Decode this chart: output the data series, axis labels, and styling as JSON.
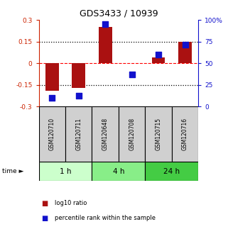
{
  "title": "GDS3433 / 10939",
  "samples": [
    "GSM120710",
    "GSM120711",
    "GSM120648",
    "GSM120708",
    "GSM120715",
    "GSM120716"
  ],
  "log10_ratio": [
    -0.19,
    -0.17,
    0.25,
    0.0,
    0.04,
    0.15
  ],
  "percentile_rank": [
    10,
    13,
    95,
    37,
    60,
    72
  ],
  "ylim_left": [
    -0.3,
    0.3
  ],
  "ylim_right": [
    0,
    100
  ],
  "hlines_dotted": [
    0.15,
    -0.15
  ],
  "hline_dashed": 0.0,
  "bar_color": "#AA1111",
  "dot_color": "#1111CC",
  "left_tick_color": "#CC2200",
  "right_tick_color": "#1111CC",
  "time_groups": [
    {
      "label": "1 h",
      "start": 0,
      "end": 2,
      "color": "#CCFFCC"
    },
    {
      "label": "4 h",
      "start": 2,
      "end": 4,
      "color": "#88EE88"
    },
    {
      "label": "24 h",
      "start": 4,
      "end": 6,
      "color": "#44CC44"
    }
  ],
  "bar_width": 0.5,
  "dot_size": 28,
  "yticks_left": [
    -0.3,
    -0.15,
    0,
    0.15,
    0.3
  ],
  "ytick_labels_left": [
    "-0.3",
    "-0.15",
    "0",
    "0.15",
    "0.3"
  ],
  "yticks_right": [
    0,
    25,
    50,
    75,
    100
  ],
  "ytick_labels_right": [
    "0",
    "25",
    "50",
    "75",
    "100%"
  ],
  "legend": [
    {
      "color": "#AA1111",
      "label": "log10 ratio"
    },
    {
      "color": "#1111CC",
      "label": "percentile rank within the sample"
    }
  ]
}
